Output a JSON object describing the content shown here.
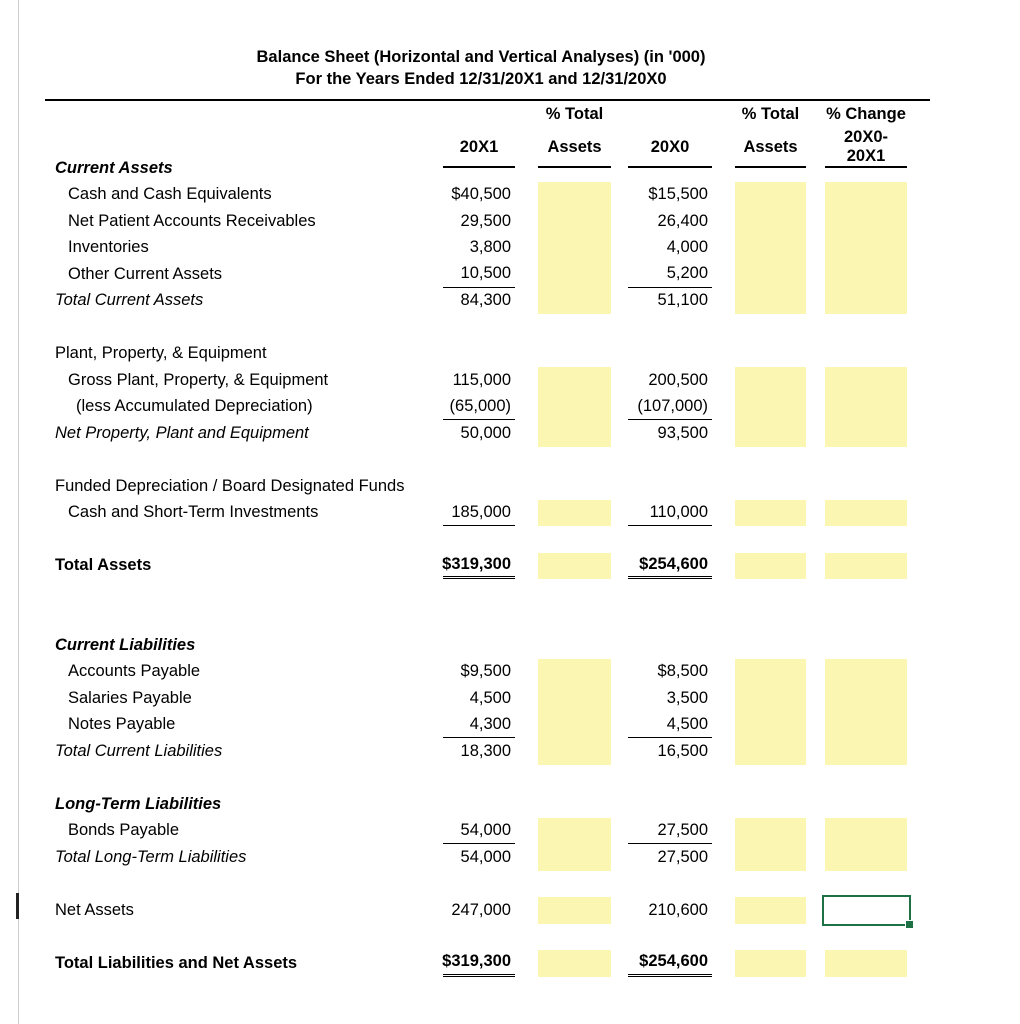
{
  "title": "Balance Sheet (Horizontal and Vertical Analyses) (in '000)",
  "subtitle": "For the Years Ended 12/31/20X1 and 12/31/20X0",
  "headers": {
    "pct_total": "% Total",
    "assets": "Assets",
    "year1": "20X1",
    "year0": "20X0",
    "pct_change": "% Change",
    "change_period": "20X0-20X1"
  },
  "colors": {
    "highlight": "#fbf7b3",
    "selection": "#1e7145"
  },
  "rows": [
    {
      "label": "Current Assets",
      "v1": "",
      "v0": ""
    },
    {
      "label": "Cash and Cash Equivalents",
      "v1": "$40,500",
      "v0": "$15,500"
    },
    {
      "label": "Net Patient Accounts Receivables",
      "v1": "29,500",
      "v0": "26,400"
    },
    {
      "label": "Inventories",
      "v1": "3,800",
      "v0": "4,000"
    },
    {
      "label": "Other Current Assets",
      "v1": "10,500",
      "v0": "5,200"
    },
    {
      "label": "Total Current Assets",
      "v1": "84,300",
      "v0": "51,100"
    },
    {
      "label": "Plant, Property, & Equipment",
      "v1": "",
      "v0": ""
    },
    {
      "label": "Gross Plant, Property, & Equipment",
      "v1": "115,000",
      "v0": "200,500"
    },
    {
      "label": "(less Accumulated Depreciation)",
      "v1": "(65,000)",
      "v0": "(107,000)"
    },
    {
      "label": "Net Property, Plant and Equipment",
      "v1": "50,000",
      "v0": "93,500"
    },
    {
      "label": "Funded Depreciation / Board Designated Funds",
      "v1": "",
      "v0": ""
    },
    {
      "label": "Cash and Short-Term Investments",
      "v1": "185,000",
      "v0": "110,000"
    },
    {
      "label": "Total Assets",
      "v1": "$319,300",
      "v0": "$254,600"
    },
    {
      "label": "Current Liabilities",
      "v1": "",
      "v0": ""
    },
    {
      "label": "Accounts Payable",
      "v1": "$9,500",
      "v0": "$8,500"
    },
    {
      "label": "Salaries Payable",
      "v1": "4,500",
      "v0": "3,500"
    },
    {
      "label": "Notes Payable",
      "v1": "4,300",
      "v0": "4,500"
    },
    {
      "label": "Total Current Liabilities",
      "v1": "18,300",
      "v0": "16,500"
    },
    {
      "label": "Long-Term Liabilities",
      "v1": "",
      "v0": ""
    },
    {
      "label": "Bonds Payable",
      "v1": "54,000",
      "v0": "27,500"
    },
    {
      "label": "Total Long-Term Liabilities",
      "v1": "54,000",
      "v0": "27,500"
    },
    {
      "label": "Net Assets",
      "v1": "247,000",
      "v0": "210,600"
    },
    {
      "label": "Total Liabilities and Net Assets",
      "v1": "$319,300",
      "v0": "$254,600"
    }
  ]
}
